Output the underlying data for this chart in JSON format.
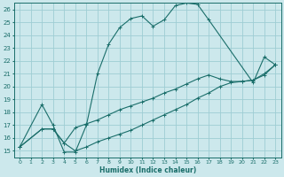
{
  "xlabel": "Humidex (Indice chaleur)",
  "bg_color": "#cce8ec",
  "grid_color": "#9ecdd4",
  "line_color": "#1a6e6a",
  "xlim": [
    -0.5,
    23.5
  ],
  "ylim": [
    14.5,
    26.5
  ],
  "xticks": [
    0,
    1,
    2,
    3,
    4,
    5,
    6,
    7,
    8,
    9,
    10,
    11,
    12,
    13,
    14,
    15,
    16,
    17,
    18,
    19,
    20,
    21,
    22,
    23
  ],
  "yticks": [
    15,
    16,
    17,
    18,
    19,
    20,
    21,
    22,
    23,
    24,
    25,
    26
  ],
  "line1_x": [
    0,
    2,
    3,
    4,
    5,
    6,
    7,
    8,
    9,
    10,
    11,
    12,
    13,
    14,
    15,
    16,
    17,
    21,
    22,
    23
  ],
  "line1_y": [
    15.3,
    18.6,
    17.0,
    14.9,
    14.9,
    17.0,
    21.0,
    23.3,
    24.6,
    25.3,
    25.5,
    24.7,
    25.2,
    26.3,
    26.5,
    26.4,
    25.2,
    20.3,
    22.3,
    21.7
  ],
  "line2_x": [
    0,
    2,
    3,
    4,
    5,
    6,
    7,
    8,
    9,
    10,
    11,
    12,
    13,
    14,
    15,
    16,
    17,
    18,
    19,
    20,
    21,
    22,
    23
  ],
  "line2_y": [
    15.3,
    16.7,
    16.7,
    15.6,
    16.8,
    17.1,
    17.4,
    17.8,
    18.2,
    18.5,
    18.8,
    19.1,
    19.5,
    19.8,
    20.2,
    20.6,
    20.9,
    20.6,
    20.4,
    20.4,
    20.5,
    21.0,
    21.7
  ],
  "line3_x": [
    0,
    2,
    3,
    4,
    5,
    6,
    7,
    8,
    9,
    10,
    11,
    12,
    13,
    14,
    15,
    16,
    17,
    18,
    19,
    20,
    21,
    22,
    23
  ],
  "line3_y": [
    15.3,
    16.7,
    16.7,
    15.6,
    15.0,
    15.3,
    15.7,
    16.0,
    16.3,
    16.6,
    17.0,
    17.4,
    17.8,
    18.2,
    18.6,
    19.1,
    19.5,
    20.0,
    20.3,
    20.4,
    20.5,
    20.9,
    21.7
  ]
}
